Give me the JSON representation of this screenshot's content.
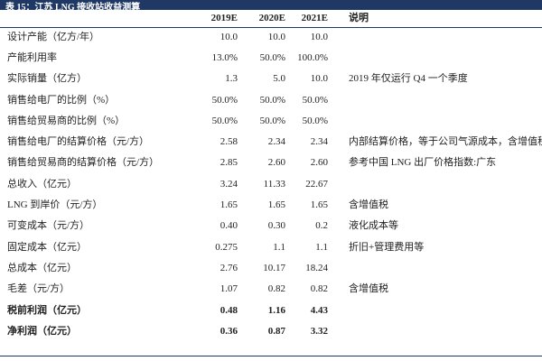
{
  "header": {
    "title": "表 15：江苏 LNG 接收站收益测算"
  },
  "table": {
    "columns": [
      "2019E",
      "2020E",
      "2021E",
      "说明"
    ],
    "rows": [
      {
        "cells": [
          "设计产能（亿方/年）",
          "10.0",
          "10.0",
          "10.0"
        ]
      },
      {
        "cells": [
          "产能利用率",
          "13.0%",
          "50.0%",
          "100.0%"
        ]
      },
      {
        "cells": [
          "实际销量（亿方）",
          "1.3",
          "5.0",
          "10.0"
        ],
        "note": "2019 年仅运行 Q4 一个季度"
      },
      {
        "cells": [
          "销售给电厂的比例（%）",
          "50.0%",
          "50.0%",
          "50.0%"
        ]
      },
      {
        "cells": [
          "销售给贸易商的比例（%）",
          "50.0%",
          "50.0%",
          "50.0%"
        ]
      },
      {
        "cells": [
          "销售给电厂的结算价格（元/方）",
          "2.58",
          "2.34",
          "2.34"
        ],
        "note": "内部结算价格，等于公司气源成本，含增值税"
      },
      {
        "cells": [
          "销售给贸易商的结算价格（元/方）",
          "2.85",
          "2.60",
          "2.60"
        ],
        "note": "参考中国 LNG 出厂价格指数:广东"
      },
      {
        "cells": [
          "总收入（亿元）",
          "3.24",
          "11.33",
          "22.67"
        ]
      },
      {
        "cells": [
          "LNG 到岸价（元/方）",
          "1.65",
          "1.65",
          "1.65"
        ],
        "note": "含增值税"
      },
      {
        "cells": [
          "可变成本（元/方）",
          "0.40",
          "0.30",
          "0.2"
        ],
        "note": "液化成本等"
      },
      {
        "cells": [
          "固定成本（亿元）",
          "0.275",
          "1.1",
          "1.1"
        ],
        "note": "折旧+管理费用等"
      },
      {
        "cells": [
          "总成本（亿元）",
          "2.76",
          "10.17",
          "18.24"
        ]
      },
      {
        "cells": [
          "毛差（元/方）",
          "1.07",
          "0.82",
          "0.82"
        ],
        "note": "含增值税"
      },
      {
        "cells": [
          "税前利润（亿元）",
          "0.48",
          "1.16",
          "4.43"
        ],
        "bold": true
      },
      {
        "cells": [
          "净利润（亿元）",
          "0.36",
          "0.87",
          "3.32"
        ],
        "bold": true
      }
    ]
  }
}
